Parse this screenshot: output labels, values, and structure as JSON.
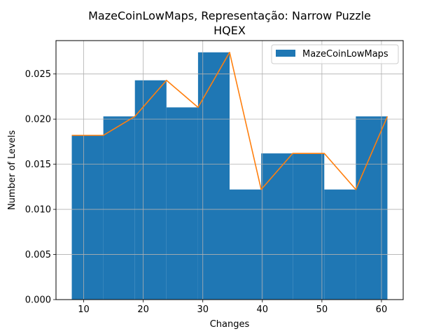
{
  "chart_data": {
    "type": "bar",
    "title_line1": "MazeCoinLowMaps, Representação: Narrow Puzzle",
    "title_line2": "HQEX",
    "xlabel": "Changes",
    "ylabel": "Number of Levels",
    "xlim": [
      5.35,
      63.65
    ],
    "ylim": [
      0,
      0.0287
    ],
    "x_ticks": [
      10,
      20,
      30,
      40,
      50,
      60
    ],
    "y_ticks": [
      0.0,
      0.005,
      0.01,
      0.015,
      0.02,
      0.025
    ],
    "y_tick_labels": [
      "0.000",
      "0.005",
      "0.010",
      "0.015",
      "0.020",
      "0.025"
    ],
    "grid": true,
    "legend_position": "top-right",
    "colors": {
      "bar": "#1f77b4",
      "line": "#ff7f0e",
      "grid": "#b0b0b0"
    },
    "histogram": {
      "name": "MazeCoinLowMaps",
      "bin_edges": [
        8,
        13.3,
        18.6,
        23.9,
        29.2,
        34.5,
        39.8,
        45.1,
        50.4,
        55.7,
        61
      ],
      "values": [
        0.0182,
        0.0203,
        0.0243,
        0.0213,
        0.0274,
        0.0122,
        0.0162,
        0.0162,
        0.0122,
        0.0203
      ]
    },
    "line": {
      "x": [
        8,
        13.3,
        18.6,
        23.9,
        29.2,
        34.5,
        39.8,
        45.1,
        50.4,
        55.7,
        61
      ],
      "y": [
        0.0182,
        0.0182,
        0.0203,
        0.0243,
        0.0213,
        0.0274,
        0.0122,
        0.0162,
        0.0162,
        0.0122,
        0.0203
      ]
    }
  }
}
